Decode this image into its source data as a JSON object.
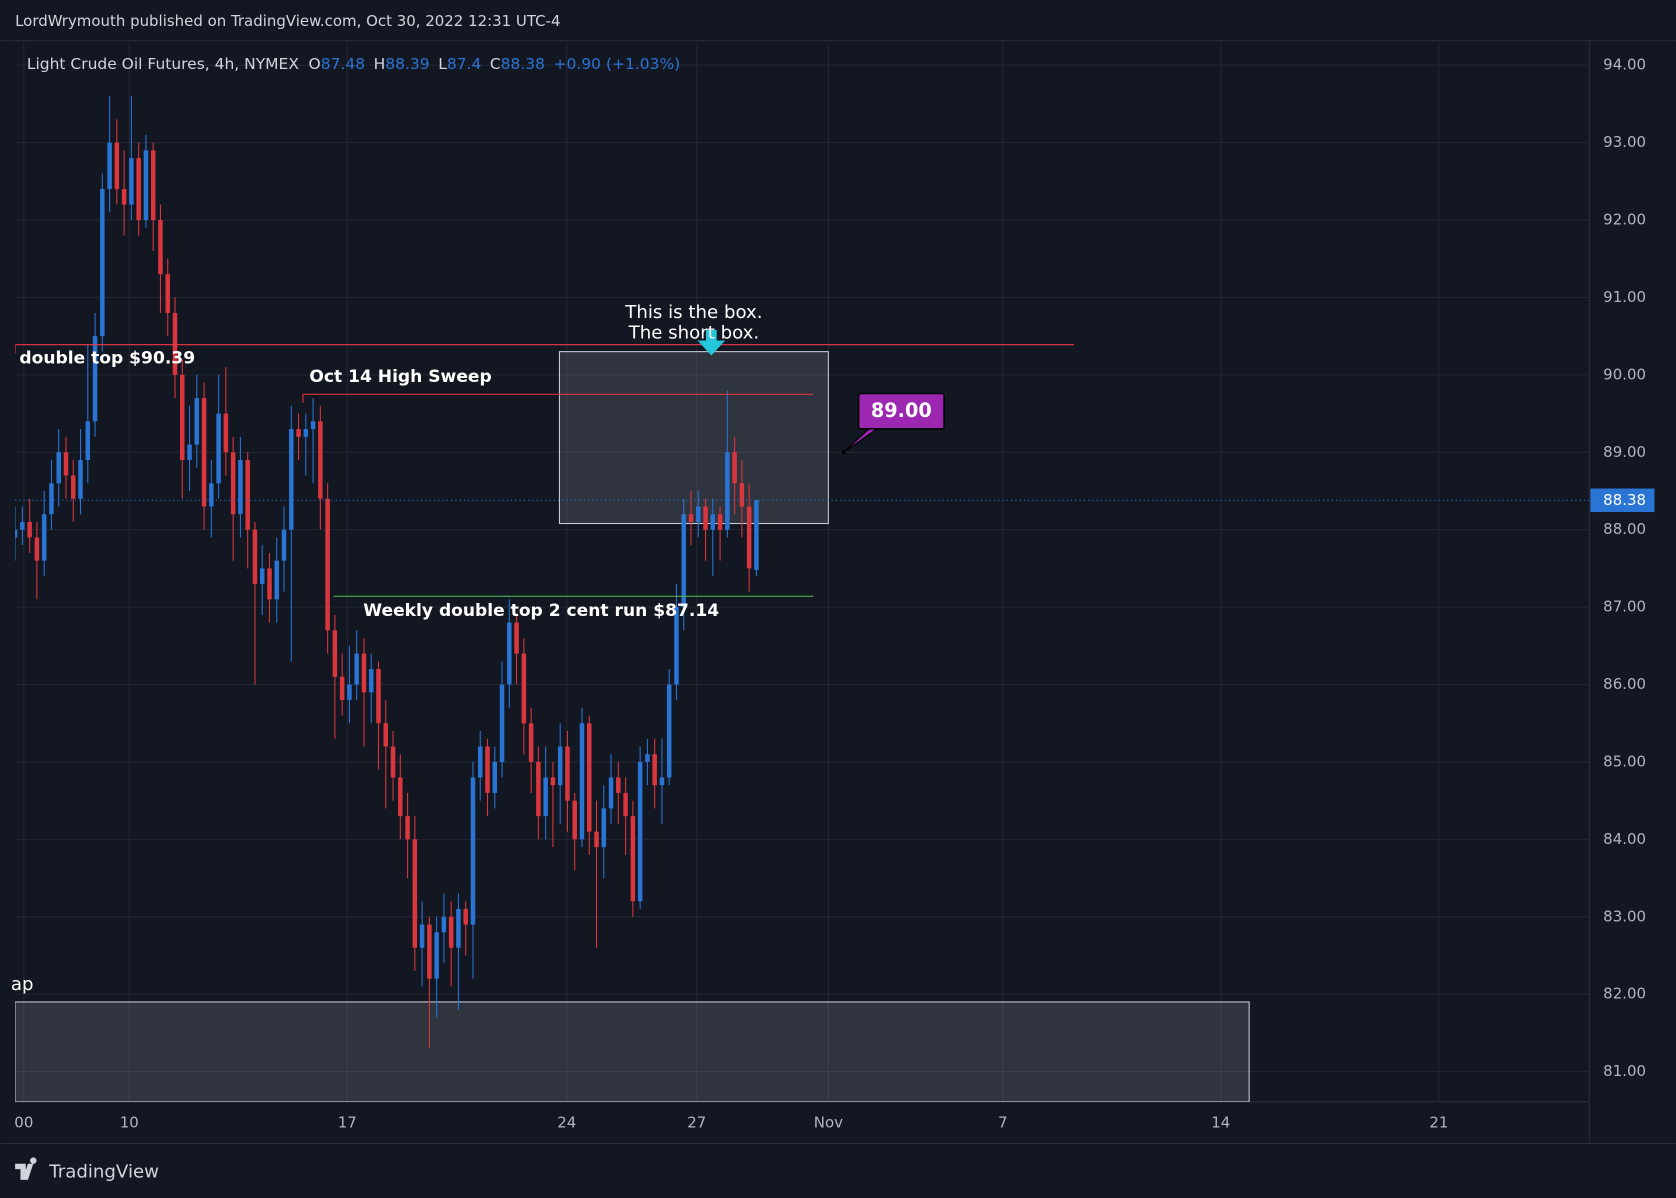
{
  "header": {
    "text": "LordWrymouth published on TradingView.com, Oct 30, 2022 12:31 UTC-4"
  },
  "footer": {
    "brand": "TradingView"
  },
  "chart_data": {
    "type": "candlestick",
    "title": "Light Crude Oil Futures, 4h, NYMEX",
    "ohlc_letters": [
      "O",
      "H",
      "L",
      "C"
    ],
    "change": "+0.90 (+1.03%)",
    "up_color": "#2a74d4",
    "down_color": "#d9363e",
    "xlim": [
      0,
      216.6
    ],
    "ylim": [
      80.61,
      94.29
    ],
    "xticks": [
      {
        "value": 1.2,
        "label": "00"
      },
      {
        "value": 15.7,
        "label": "10"
      },
      {
        "value": 45.7,
        "label": "17"
      },
      {
        "value": 75.9,
        "label": "24"
      },
      {
        "value": 93.8,
        "label": "27"
      },
      {
        "value": 111.9,
        "label": "Nov"
      },
      {
        "value": 135.9,
        "label": "7"
      },
      {
        "value": 165.9,
        "label": "14"
      },
      {
        "value": 195.9,
        "label": "21"
      }
    ],
    "yticks": [
      {
        "value": 81,
        "label": "81.00"
      },
      {
        "value": 82,
        "label": "82.00"
      },
      {
        "value": 83,
        "label": "83.00"
      },
      {
        "value": 84,
        "label": "84.00"
      },
      {
        "value": 85,
        "label": "85.00"
      },
      {
        "value": 86,
        "label": "86.00"
      },
      {
        "value": 87,
        "label": "87.00"
      },
      {
        "value": 88,
        "label": "88.00"
      },
      {
        "value": 89,
        "label": "89.00"
      },
      {
        "value": 90,
        "label": "90.00"
      },
      {
        "value": 91,
        "label": "91.00"
      },
      {
        "value": 92,
        "label": "92.00"
      },
      {
        "value": 93,
        "label": "93.00"
      },
      {
        "value": 94,
        "label": "94.00"
      }
    ],
    "grid": true,
    "x": [
      0,
      1,
      2,
      3,
      4,
      5,
      6,
      7,
      8,
      9,
      10,
      11,
      12,
      13,
      14,
      15,
      16,
      17,
      18,
      19,
      20,
      21,
      22,
      23,
      24,
      25,
      26,
      27,
      28,
      29,
      30,
      31,
      32,
      33,
      34,
      35,
      36,
      37,
      38,
      39,
      40,
      41,
      42,
      43,
      44,
      45,
      46,
      47,
      48,
      49,
      50,
      51,
      52,
      53,
      54,
      55,
      56,
      57,
      58,
      59,
      60,
      61,
      62,
      63,
      64,
      65,
      66,
      67,
      68,
      69,
      70,
      71,
      72,
      73,
      74,
      75,
      76,
      77,
      78,
      79,
      80,
      81,
      82,
      83,
      84,
      85,
      86,
      87,
      88,
      89,
      90,
      91,
      92,
      93,
      94,
      95,
      96,
      97,
      98,
      99,
      100,
      101,
      102
    ],
    "ohlc": [
      [
        87.9,
        88.3,
        87.6,
        88.0
      ],
      [
        88.0,
        88.3,
        87.8,
        88.1
      ],
      [
        88.1,
        88.4,
        87.7,
        87.9
      ],
      [
        87.9,
        88.1,
        87.1,
        87.6
      ],
      [
        87.6,
        88.5,
        87.4,
        88.2
      ],
      [
        88.2,
        88.9,
        88.0,
        88.6
      ],
      [
        88.6,
        89.3,
        88.3,
        89.0
      ],
      [
        89.0,
        89.2,
        88.4,
        88.7
      ],
      [
        88.7,
        88.9,
        88.1,
        88.4
      ],
      [
        88.4,
        89.3,
        88.2,
        88.9
      ],
      [
        88.9,
        90.4,
        88.6,
        89.4
      ],
      [
        89.4,
        90.8,
        89.2,
        90.5
      ],
      [
        90.5,
        92.6,
        90.3,
        92.4
      ],
      [
        92.4,
        93.6,
        92.1,
        93.0
      ],
      [
        93.0,
        93.3,
        92.2,
        92.4
      ],
      [
        92.4,
        92.9,
        91.8,
        92.2
      ],
      [
        92.2,
        93.6,
        92.0,
        92.8
      ],
      [
        92.8,
        93.0,
        91.8,
        92.0
      ],
      [
        92.0,
        93.1,
        91.9,
        92.9
      ],
      [
        92.9,
        93.0,
        91.6,
        92.0
      ],
      [
        92.0,
        92.2,
        90.8,
        91.3
      ],
      [
        91.3,
        91.5,
        90.5,
        90.8
      ],
      [
        90.8,
        91.0,
        89.7,
        90.0
      ],
      [
        90.0,
        90.2,
        88.4,
        88.9
      ],
      [
        88.9,
        89.6,
        88.5,
        89.1
      ],
      [
        89.1,
        90.0,
        88.8,
        89.7
      ],
      [
        89.7,
        89.9,
        88.0,
        88.3
      ],
      [
        88.3,
        88.9,
        87.9,
        88.6
      ],
      [
        88.6,
        90.0,
        88.4,
        89.5
      ],
      [
        89.5,
        90.1,
        88.7,
        89.0
      ],
      [
        89.0,
        89.2,
        87.6,
        88.2
      ],
      [
        88.2,
        89.2,
        87.9,
        88.9
      ],
      [
        88.9,
        89.0,
        87.5,
        88.0
      ],
      [
        88.0,
        88.1,
        86.0,
        87.3
      ],
      [
        87.3,
        87.8,
        86.9,
        87.5
      ],
      [
        87.5,
        87.7,
        86.8,
        87.1
      ],
      [
        87.1,
        87.9,
        86.8,
        87.6
      ],
      [
        87.6,
        88.3,
        87.2,
        88.0
      ],
      [
        88.0,
        89.6,
        86.3,
        89.3
      ],
      [
        89.3,
        89.5,
        88.9,
        89.2
      ],
      [
        89.2,
        89.5,
        88.7,
        89.3
      ],
      [
        89.3,
        89.7,
        88.6,
        89.4
      ],
      [
        89.4,
        89.6,
        88.0,
        88.4
      ],
      [
        88.4,
        88.6,
        86.4,
        86.7
      ],
      [
        86.7,
        86.9,
        85.3,
        86.1
      ],
      [
        86.1,
        86.4,
        85.6,
        85.8
      ],
      [
        85.8,
        86.5,
        85.5,
        86.0
      ],
      [
        86.0,
        86.7,
        85.8,
        86.4
      ],
      [
        86.4,
        86.6,
        85.2,
        85.9
      ],
      [
        85.9,
        86.4,
        85.5,
        86.2
      ],
      [
        86.2,
        86.3,
        84.9,
        85.5
      ],
      [
        85.5,
        85.8,
        84.4,
        85.2
      ],
      [
        85.2,
        85.4,
        84.5,
        84.8
      ],
      [
        84.8,
        85.1,
        84.0,
        84.3
      ],
      [
        84.3,
        84.6,
        83.5,
        84.0
      ],
      [
        84.0,
        84.3,
        82.3,
        82.6
      ],
      [
        82.6,
        83.2,
        82.1,
        82.9
      ],
      [
        82.9,
        83.0,
        81.3,
        82.2
      ],
      [
        82.2,
        83.0,
        81.7,
        82.8
      ],
      [
        82.8,
        83.3,
        82.4,
        83.0
      ],
      [
        83.0,
        83.2,
        82.1,
        82.6
      ],
      [
        82.6,
        83.3,
        81.8,
        83.1
      ],
      [
        83.1,
        83.2,
        82.5,
        82.9
      ],
      [
        82.9,
        85.0,
        82.2,
        84.8
      ],
      [
        84.8,
        85.4,
        84.5,
        85.2
      ],
      [
        85.2,
        85.3,
        84.3,
        84.6
      ],
      [
        84.6,
        85.2,
        84.4,
        85.0
      ],
      [
        85.0,
        86.3,
        84.8,
        86.0
      ],
      [
        86.0,
        87.1,
        85.7,
        86.8
      ],
      [
        86.8,
        86.9,
        86.0,
        86.4
      ],
      [
        86.4,
        86.6,
        85.1,
        85.5
      ],
      [
        85.5,
        85.7,
        84.6,
        85.0
      ],
      [
        85.0,
        85.2,
        84.0,
        84.3
      ],
      [
        84.3,
        85.2,
        84.0,
        84.8
      ],
      [
        84.8,
        85.0,
        83.9,
        84.7
      ],
      [
        84.7,
        85.5,
        84.2,
        85.2
      ],
      [
        85.2,
        85.4,
        84.1,
        84.5
      ],
      [
        84.5,
        84.6,
        83.6,
        84.0
      ],
      [
        84.0,
        85.7,
        83.9,
        85.5
      ],
      [
        85.5,
        85.6,
        83.8,
        84.1
      ],
      [
        84.1,
        84.5,
        82.6,
        83.9
      ],
      [
        83.9,
        84.7,
        83.5,
        84.4
      ],
      [
        84.4,
        85.1,
        84.2,
        84.8
      ],
      [
        84.8,
        85.0,
        84.2,
        84.6
      ],
      [
        84.6,
        84.8,
        83.8,
        84.3
      ],
      [
        84.3,
        84.5,
        83.0,
        83.2
      ],
      [
        83.2,
        85.2,
        83.1,
        85.0
      ],
      [
        85.0,
        85.3,
        84.7,
        85.1
      ],
      [
        85.1,
        85.3,
        84.4,
        84.7
      ],
      [
        84.7,
        85.3,
        84.2,
        84.8
      ],
      [
        84.8,
        86.2,
        84.7,
        86.0
      ],
      [
        86.0,
        87.3,
        85.8,
        87.0
      ],
      [
        87.0,
        88.4,
        86.7,
        88.2
      ],
      [
        88.2,
        88.5,
        87.8,
        88.1
      ],
      [
        88.1,
        88.5,
        87.9,
        88.3
      ],
      [
        88.3,
        88.4,
        87.6,
        88.0
      ],
      [
        88.0,
        88.4,
        87.4,
        88.2
      ],
      [
        88.2,
        88.3,
        87.6,
        88.0
      ],
      [
        88.0,
        89.8,
        87.9,
        89.0
      ],
      [
        89.0,
        89.2,
        88.2,
        88.6
      ],
      [
        88.6,
        88.9,
        87.9,
        88.3
      ],
      [
        88.3,
        88.6,
        87.2,
        87.5
      ],
      [
        87.48,
        88.39,
        87.4,
        88.38
      ]
    ],
    "lines": [
      {
        "text": "double top $90.39",
        "price": 90.39,
        "from": 0,
        "to": 145.7,
        "color": "#f23645"
      },
      {
        "text": "Oct 14 High Sweep",
        "price": 89.75,
        "from": 39.6,
        "to": 109.8,
        "color": "#f23645"
      },
      {
        "text": "Weekly double top 2 cent run $87.14",
        "price": 87.14,
        "from": 43.8,
        "to": 109.8,
        "color": "#4caf50"
      }
    ],
    "boxes": [
      {
        "texts": [
          "This is the box.",
          "The short box."
        ],
        "top": 90.3,
        "bottom": 88.08,
        "from": 74.9,
        "to": 111.9
      },
      {
        "texts": [
          "ap"
        ],
        "top": 81.9,
        "bottom": 80.61,
        "from": 0,
        "to": 169.8
      }
    ],
    "arrow": {
      "x": 95.8,
      "price": 90.25,
      "color": "#26c6da"
    },
    "callout": {
      "text": "89.00",
      "x": 114,
      "price": 89.0,
      "color": "#9c27b0"
    }
  }
}
